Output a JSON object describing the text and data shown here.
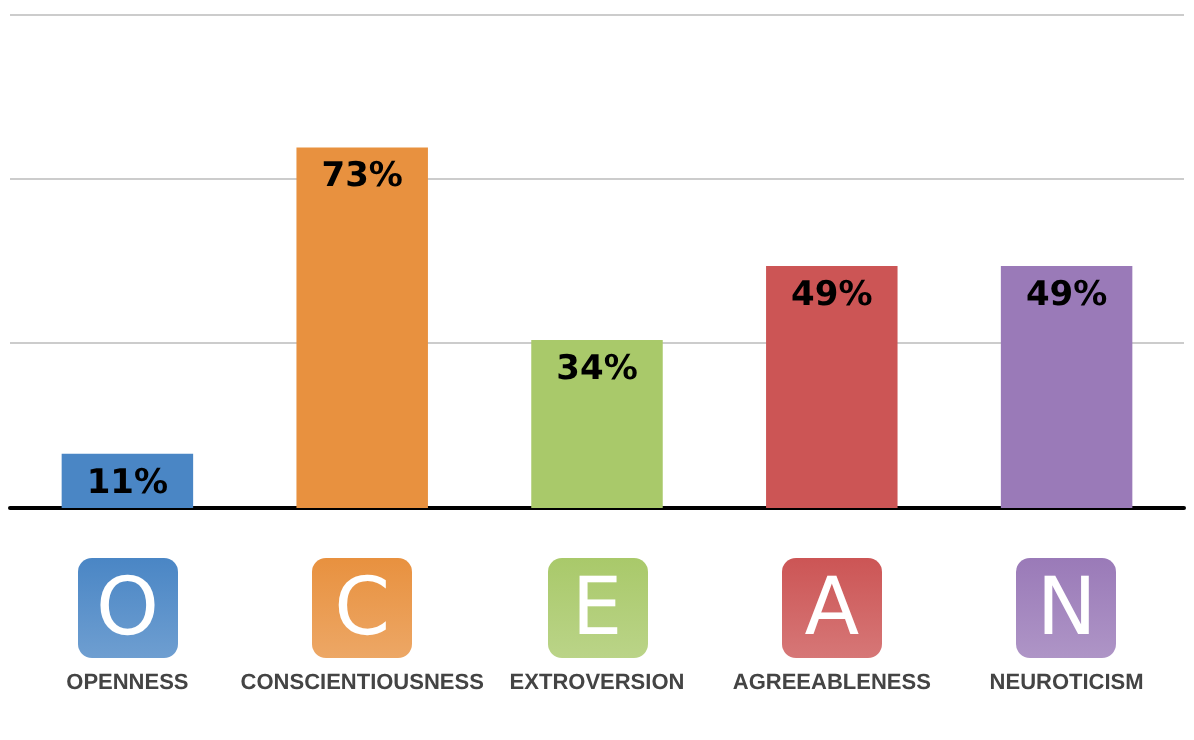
{
  "chart_data": {
    "type": "bar",
    "categories": [
      "OPENNESS",
      "CONSCIENTIOUSNESS",
      "EXTROVERSION",
      "AGREEABLENESS",
      "NEUROTICISM"
    ],
    "values": [
      11,
      73,
      34,
      49,
      49
    ],
    "value_labels": [
      "11%",
      "73%",
      "34%",
      "49%",
      "49%"
    ],
    "colors": [
      "#4a86c5",
      "#e8913f",
      "#a9c96a",
      "#cc5555",
      "#9a7ab8"
    ],
    "ylim": [
      0,
      100
    ],
    "yticks": [
      {
        "value": 0,
        "label": null
      },
      {
        "value": 33.3,
        "label": null
      },
      {
        "value": 66.7,
        "label": null
      },
      {
        "value": 100,
        "label": null
      }
    ],
    "grid": "y",
    "tick_labels": "x",
    "annotations": [
      "O",
      "C",
      "E",
      "A",
      "N"
    ]
  }
}
